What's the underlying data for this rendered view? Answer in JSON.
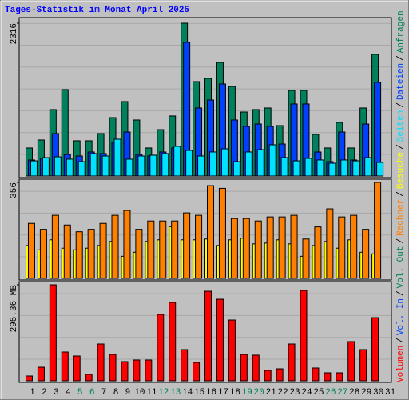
{
  "chart_data": [
    {
      "type": "bar",
      "title": "Tages-Statistik im Monat April 2025",
      "ylim": [
        0,
        2316
      ],
      "yticks": [
        2316
      ],
      "series": [
        {
          "name": "Anfragen",
          "color": "#00805c",
          "values": [
            425,
            546,
            1007,
            1310,
            534,
            534,
            643,
            885,
            1128,
            849,
            425,
            703,
            910,
            2316,
            1431,
            1480,
            1722,
            1358,
            970,
            1007,
            1031,
            764,
            1298,
            1298,
            631,
            425,
            813,
            425,
            1031,
            1844,
            null
          ]
        },
        {
          "name": "Dateien",
          "color": "#0040ff",
          "values": [
            243,
            267,
            643,
            327,
            303,
            364,
            340,
            510,
            667,
            327,
            303,
            364,
            425,
            2026,
            1031,
            1152,
            1395,
            849,
            752,
            788,
            752,
            485,
            1092,
            1092,
            364,
            218,
            667,
            243,
            788,
            1419,
            null
          ]
        },
        {
          "name": "Seiten",
          "color": "#00e0ff",
          "values": [
            230,
            279,
            291,
            255,
            218,
            340,
            303,
            558,
            255,
            303,
            315,
            340,
            449,
            388,
            303,
            364,
            412,
            218,
            364,
            400,
            473,
            279,
            230,
            267,
            243,
            194,
            243,
            230,
            279,
            206,
            null
          ]
        }
      ]
    },
    {
      "type": "bar",
      "ylim": [
        0,
        356
      ],
      "yticks": [
        356
      ],
      "series": [
        {
          "name": "Besuche",
          "color": "#ffff00",
          "values": [
            122,
            106,
            143,
            112,
            106,
            112,
            122,
            137,
            82,
            97,
            137,
            143,
            192,
            143,
            143,
            146,
            122,
            143,
            149,
            128,
            131,
            143,
            128,
            82,
            122,
            137,
            112,
            143,
            97,
            91,
            null
          ]
        },
        {
          "name": "Rechner",
          "color": "#ff8000",
          "values": [
            204,
            182,
            234,
            198,
            173,
            182,
            204,
            234,
            252,
            182,
            213,
            213,
            213,
            243,
            234,
            344,
            334,
            222,
            222,
            213,
            228,
            228,
            234,
            146,
            191,
            258,
            228,
            234,
            182,
            356,
            null
          ]
        }
      ]
    },
    {
      "type": "bar",
      "ylim": [
        0,
        295.36
      ],
      "yticks": [
        {
          "value": 295.36,
          "label": "295.36 MB"
        }
      ],
      "legend_separator": "/",
      "categories": [
        "1",
        "2",
        "3",
        "4",
        "5",
        "6",
        "7",
        "8",
        "9",
        "10",
        "11",
        "12",
        "13",
        "14",
        "15",
        "16",
        "17",
        "18",
        "19",
        "20",
        "21",
        "22",
        "23",
        "24",
        "25",
        "26",
        "27",
        "28",
        "29",
        "30",
        "31"
      ],
      "category_colors": [
        "#000000",
        "#000000",
        "#000000",
        "#000000",
        "#00805c",
        "#00805c",
        "#000000",
        "#000000",
        "#000000",
        "#000000",
        "#000000",
        "#00805c",
        "#00805c",
        "#000000",
        "#000000",
        "#000000",
        "#000000",
        "#000000",
        "#00805c",
        "#00805c",
        "#000000",
        "#000000",
        "#000000",
        "#000000",
        "#000000",
        "#00805c",
        "#00805c",
        "#000000",
        "#000000",
        "#000000",
        "#000000"
      ],
      "series": [
        {
          "name": "Vol. Out",
          "color": "#00805c"
        },
        {
          "name": "Vol. In",
          "color": "#0040ff"
        },
        {
          "name": "Volumen",
          "color": "#ff0000",
          "values": [
            14.8,
            41.8,
            295.36,
            88.6,
            76.3,
            19.7,
            113.2,
            81.2,
            59.1,
            64.0,
            64.0,
            204.3,
            241.2,
            96.0,
            56.6,
            275.6,
            251.0,
            187.0,
            81.2,
            78.8,
            32.0,
            36.9,
            113.2,
            278.1,
            39.4,
            24.6,
            24.6,
            120.6,
            96.0,
            194.4,
            null
          ]
        }
      ]
    }
  ]
}
